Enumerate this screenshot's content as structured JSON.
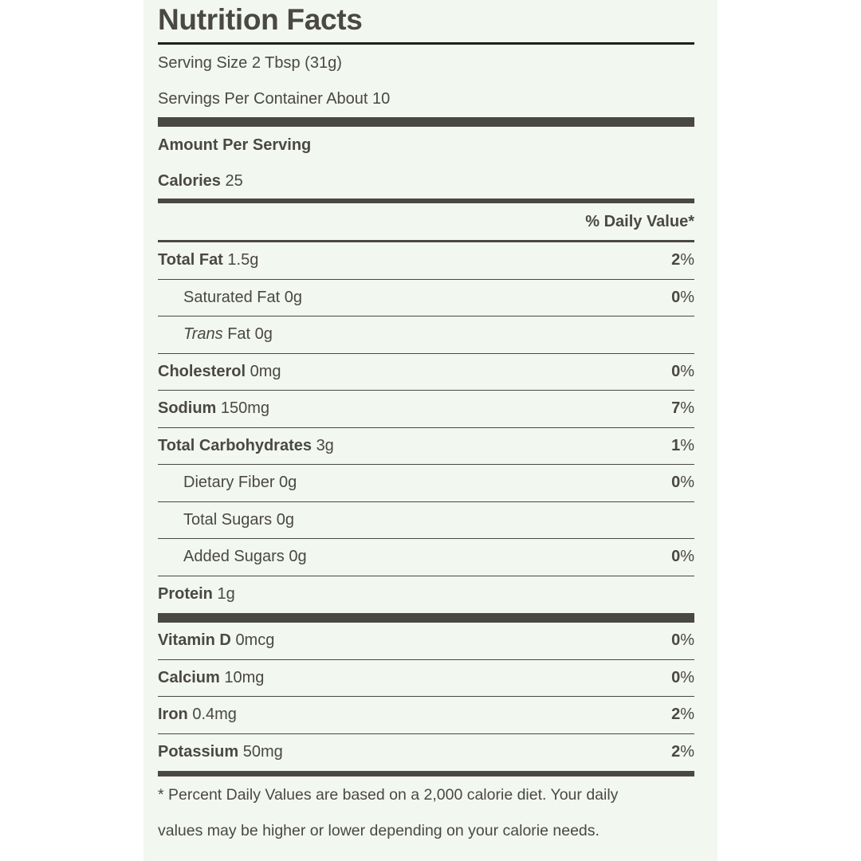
{
  "title": "Nutrition Facts",
  "serving_size": "Serving Size 2 Tbsp (31g)",
  "servings_per_container": "Servings Per Container About 10",
  "amount_per_serving": "Amount Per Serving",
  "calories": {
    "label": "Calories",
    "value": "25"
  },
  "daily_value_header": "% Daily Value*",
  "nutrients": [
    {
      "name": "Total Fat",
      "amount": "1.5g",
      "dv": "2",
      "bold": true,
      "indent": false
    },
    {
      "name": "Saturated Fat",
      "amount": "0g",
      "dv": "0",
      "bold": false,
      "indent": true
    },
    {
      "name": "Trans",
      "name_suffix": "Fat",
      "amount": "0g",
      "dv": "",
      "bold": false,
      "indent": true,
      "italic_prefix": true
    },
    {
      "name": "Cholesterol",
      "amount": "0mg",
      "dv": "0",
      "bold": true,
      "indent": false
    },
    {
      "name": "Sodium",
      "amount": "150mg",
      "dv": "7",
      "bold": true,
      "indent": false
    },
    {
      "name": "Total Carbohydrates",
      "amount": "3g",
      "dv": "1",
      "bold": true,
      "indent": false
    },
    {
      "name": "Dietary Fiber",
      "amount": "0g",
      "dv": "0",
      "bold": false,
      "indent": true
    },
    {
      "name": "Total Sugars",
      "amount": "0g",
      "dv": "",
      "bold": false,
      "indent": true
    },
    {
      "name": "Added Sugars",
      "amount": "0g",
      "dv": "0",
      "bold": false,
      "indent": true
    },
    {
      "name": "Protein",
      "amount": "1g",
      "dv": "",
      "bold": true,
      "indent": false
    }
  ],
  "vitamins": [
    {
      "name": "Vitamin D",
      "amount": "0mcg",
      "dv": "0"
    },
    {
      "name": "Calcium",
      "amount": "10mg",
      "dv": "0"
    },
    {
      "name": "Iron",
      "amount": "0.4mg",
      "dv": "2"
    },
    {
      "name": "Potassium",
      "amount": "50mg",
      "dv": "2"
    }
  ],
  "percent_sign": "%",
  "footnote": [
    "* Percent Daily Values are based on a 2,000 calorie diet. Your daily",
    "values may be higher or lower depending on your calorie needs."
  ]
}
